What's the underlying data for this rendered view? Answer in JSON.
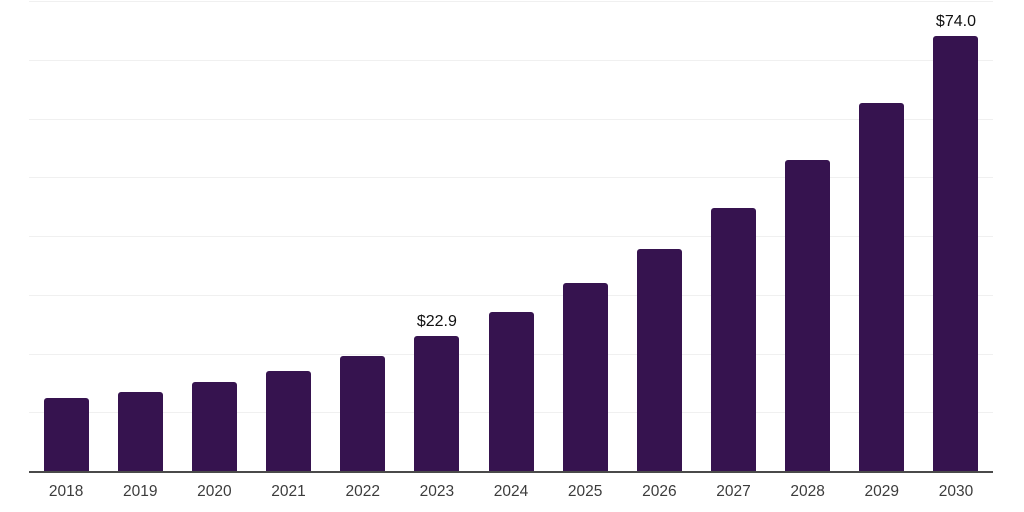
{
  "chart_data": {
    "type": "bar",
    "categories": [
      "2018",
      "2019",
      "2020",
      "2021",
      "2022",
      "2023",
      "2024",
      "2025",
      "2026",
      "2027",
      "2028",
      "2029",
      "2030"
    ],
    "values": [
      12.4,
      13.5,
      15.2,
      17.1,
      19.6,
      22.9,
      27.1,
      32.0,
      37.8,
      44.7,
      52.9,
      62.6,
      74.0
    ],
    "data_labels": {
      "2023": "$22.9",
      "2030": "$74.0"
    },
    "title": "",
    "xlabel": "",
    "ylabel": "",
    "ylim": [
      0,
      80
    ],
    "gridline_step": 10,
    "grid": true,
    "legend": false,
    "colors": {
      "bar": "#36134f",
      "gridline": "#f0f0f0",
      "axis": "#4a4a4a",
      "tick_label": "#3c3c3c",
      "value_label": "#111111"
    }
  }
}
